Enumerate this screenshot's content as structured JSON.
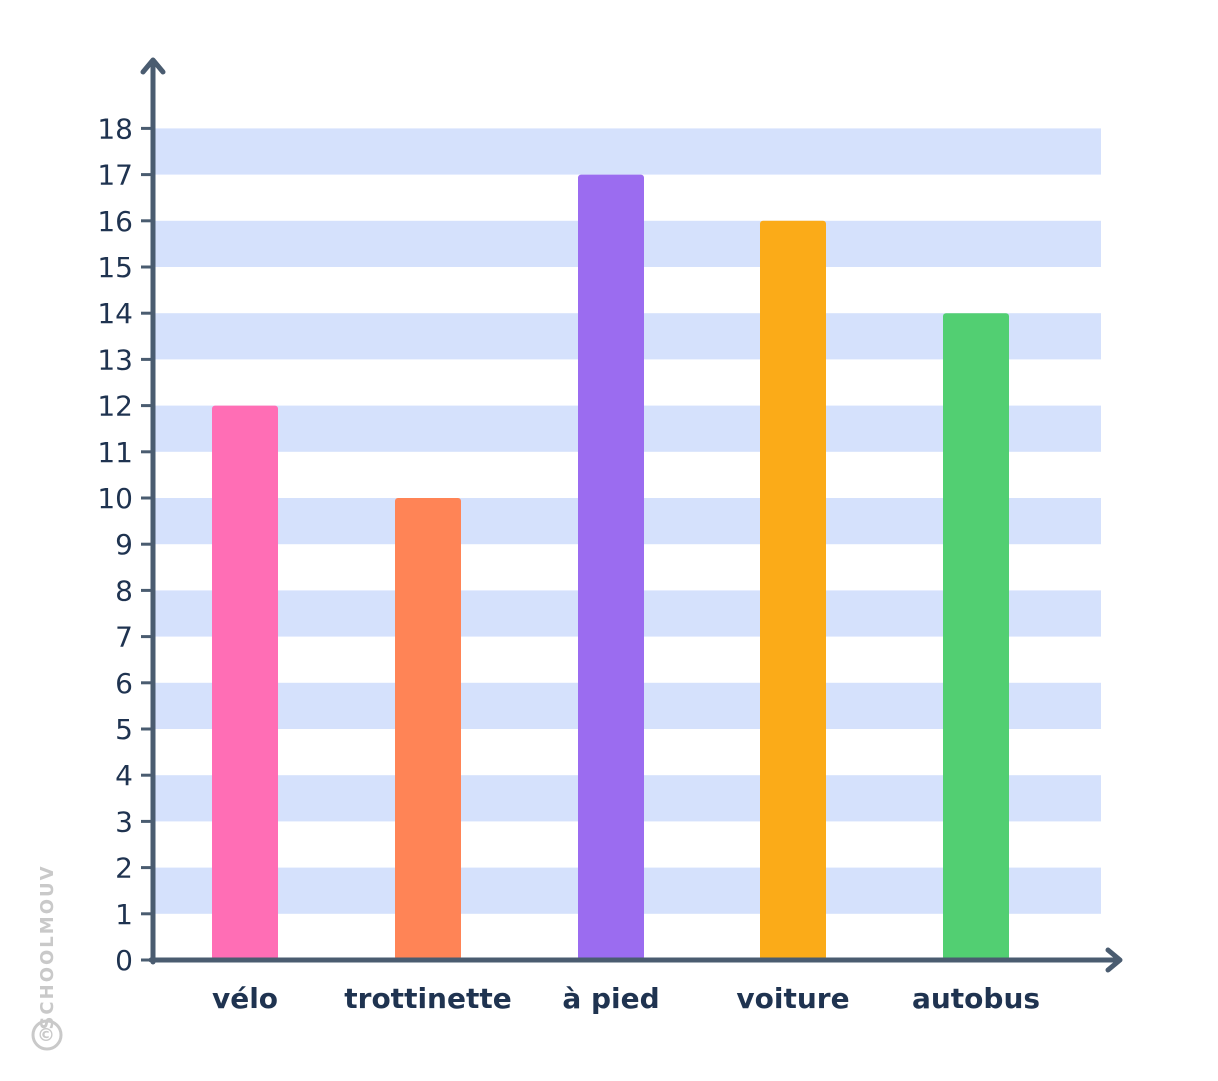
{
  "chart_data": {
    "type": "bar",
    "categories": [
      "vélo",
      "trottinette",
      "à pied",
      "voiture",
      "autobus"
    ],
    "values": [
      12,
      10,
      17,
      16,
      14
    ],
    "colors": [
      "#ff6eb5",
      "#ff8456",
      "#9b6cf0",
      "#fbab18",
      "#52cf72"
    ],
    "ylim": [
      0,
      18
    ],
    "y_ticks": [
      0,
      1,
      2,
      3,
      4,
      5,
      6,
      7,
      8,
      9,
      10,
      11,
      12,
      13,
      14,
      15,
      16,
      17,
      18
    ],
    "title": "",
    "xlabel": "",
    "ylabel": "",
    "grid": "alternating horizontal bands",
    "band_color": "#d5e1fc",
    "axis_color": "#4a5c70",
    "text_color": "#1f3350"
  },
  "watermark": {
    "text": "SCHOOLMOUV",
    "symbol": "©"
  }
}
